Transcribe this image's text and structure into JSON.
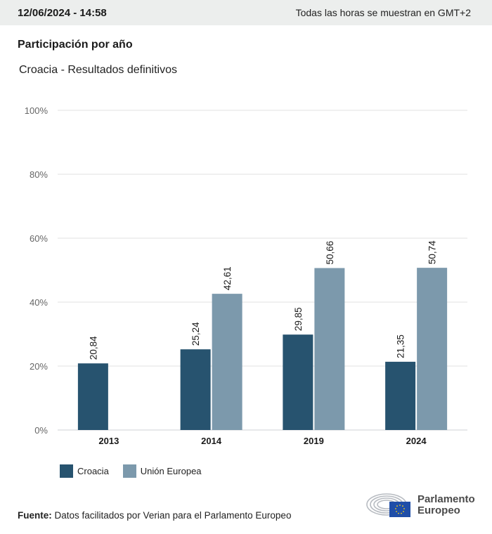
{
  "header": {
    "datetime": "12/06/2024 - 14:58",
    "timezone_note": "Todas las horas se muestran en GMT+2"
  },
  "title": "Participación por año",
  "subtitle": "Croacia - Resultados definitivos",
  "colors": {
    "croacia": "#27536f",
    "ue": "#7c99ac",
    "grid": "#e2e2e2",
    "axis_text": "#666666"
  },
  "chart_data": {
    "type": "bar",
    "title": "Participación por año",
    "subtitle": "Croacia - Resultados definitivos",
    "xlabel": "",
    "ylabel": "",
    "categories": [
      "2013",
      "2014",
      "2019",
      "2024"
    ],
    "series": [
      {
        "name": "Croacia",
        "values": [
          20.84,
          25.24,
          29.85,
          21.35
        ],
        "labels": [
          "20,84",
          "25,24",
          "29,85",
          "21,35"
        ]
      },
      {
        "name": "Unión Europea",
        "values": [
          null,
          42.61,
          50.66,
          50.74
        ],
        "labels": [
          "",
          "42,61",
          "50,66",
          "50,74"
        ]
      }
    ],
    "ylim": [
      0,
      100
    ],
    "yticks": [
      0,
      20,
      40,
      60,
      80,
      100
    ],
    "ytick_labels": [
      "0%",
      "20%",
      "40%",
      "60%",
      "80%",
      "100%"
    ],
    "grid": true,
    "legend": "bottom-left"
  },
  "legend": {
    "items": [
      {
        "label": "Croacia"
      },
      {
        "label": "Unión Europea"
      }
    ]
  },
  "footer": {
    "source_label": "Fuente:",
    "source_text": " Datos facilitados por Verian para el Parlamento Europeo",
    "logo_line1": "Parlamento",
    "logo_line2": "Europeo"
  }
}
